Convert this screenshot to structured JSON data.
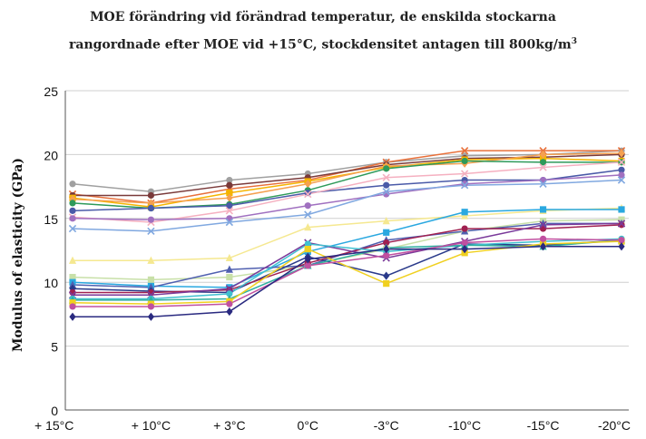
{
  "chart_data": {
    "type": "line",
    "title_line1": "MOE förändring vid förändrad temperatur, de enskilda stockarna",
    "title_line2_prefix": "rangordnade efter MOE vid +15°C, stockdensitet antagen till 800kg/m",
    "title_superscript": "3",
    "ylabel": "Modulus of elasticity (GPa)",
    "xlabel": "",
    "categories": [
      "+ 15°C",
      "+ 10°C",
      "+ 3°C",
      "0°C",
      "-3°C",
      "-10°C",
      "-15°C",
      "-20°C"
    ],
    "yticks": [
      "0",
      "5",
      "10",
      "15",
      "20",
      "25"
    ],
    "ylim": [
      0,
      25
    ],
    "grid": true,
    "legend": "none",
    "series": [
      {
        "color": "#a0a0a0",
        "marker": "circle",
        "values": [
          17.7,
          17.1,
          18.0,
          18.5,
          19.4,
          19.9,
          20.0,
          20.3
        ]
      },
      {
        "color": "#e8703a",
        "marker": "x",
        "values": [
          16.9,
          16.2,
          17.3,
          18.0,
          19.4,
          20.3,
          20.3,
          20.3
        ]
      },
      {
        "color": "#7a3a3a",
        "marker": "circle",
        "values": [
          16.8,
          16.8,
          17.6,
          18.2,
          19.2,
          19.7,
          19.8,
          20.0
        ]
      },
      {
        "color": "#f5b400",
        "marker": "square",
        "values": [
          16.6,
          15.9,
          17.0,
          17.9,
          19.0,
          19.6,
          19.7,
          19.5
        ]
      },
      {
        "color": "#f5a050",
        "marker": "diamond",
        "values": [
          16.5,
          16.2,
          16.6,
          17.7,
          19.1,
          19.3,
          20.0,
          20.1
        ]
      },
      {
        "color": "#2e9a5a",
        "marker": "circle",
        "values": [
          16.2,
          15.8,
          16.1,
          17.2,
          18.9,
          19.5,
          19.4,
          19.4
        ]
      },
      {
        "color": "#4a5aa8",
        "marker": "circle",
        "values": [
          15.6,
          15.8,
          16.0,
          17.0,
          17.6,
          18.0,
          18.0,
          18.8
        ]
      },
      {
        "color": "#f5b0c0",
        "marker": "x",
        "values": [
          15.1,
          14.7,
          15.6,
          16.9,
          18.2,
          18.5,
          19.0,
          19.4
        ]
      },
      {
        "color": "#a070c0",
        "marker": "circle",
        "values": [
          15.0,
          14.9,
          15.0,
          16.0,
          16.9,
          17.7,
          18.0,
          18.4
        ]
      },
      {
        "color": "#80a8e0",
        "marker": "x",
        "values": [
          14.2,
          14.0,
          14.7,
          15.3,
          17.1,
          17.6,
          17.7,
          18.0
        ]
      },
      {
        "color": "#f5e890",
        "marker": "triangle",
        "values": [
          11.7,
          11.7,
          11.9,
          14.3,
          14.8,
          15.2,
          15.6,
          15.8
        ]
      },
      {
        "color": "#c8e0a8",
        "marker": "square",
        "values": [
          10.4,
          10.2,
          10.4,
          11.3,
          12.6,
          14.0,
          14.8,
          14.9
        ]
      },
      {
        "color": "#2aa8e0",
        "marker": "square",
        "values": [
          10.0,
          9.7,
          9.6,
          12.4,
          13.9,
          15.5,
          15.7,
          15.7
        ]
      },
      {
        "color": "#5060b0",
        "marker": "triangle",
        "values": [
          9.8,
          9.6,
          11.0,
          11.3,
          13.3,
          14.0,
          14.6,
          14.6
        ]
      },
      {
        "color": "#2a3a8a",
        "marker": "diamond",
        "values": [
          9.5,
          9.3,
          9.2,
          12.0,
          10.5,
          13.0,
          12.9,
          13.3
        ]
      },
      {
        "color": "#a02050",
        "marker": "circle",
        "values": [
          9.2,
          9.2,
          9.4,
          11.5,
          13.1,
          14.2,
          14.2,
          14.5
        ]
      },
      {
        "color": "#7a3a9a",
        "marker": "x",
        "values": [
          9.0,
          9.0,
          9.5,
          13.1,
          11.9,
          13.2,
          14.5,
          14.6
        ]
      },
      {
        "color": "#40c0d0",
        "marker": "circle",
        "values": [
          8.7,
          8.7,
          9.1,
          13.0,
          12.4,
          12.9,
          13.2,
          13.4
        ]
      },
      {
        "color": "#30b0a0",
        "marker": "triangle",
        "values": [
          8.6,
          8.6,
          8.7,
          11.3,
          12.7,
          12.9,
          12.8,
          13.3
        ]
      },
      {
        "color": "#f0d020",
        "marker": "square",
        "values": [
          8.4,
          8.3,
          8.5,
          12.6,
          9.9,
          12.3,
          13.0,
          13.2
        ]
      },
      {
        "color": "#c050a0",
        "marker": "circle",
        "values": [
          8.1,
          8.1,
          8.3,
          11.3,
          12.1,
          13.1,
          13.4,
          13.3
        ]
      },
      {
        "color": "#2a2a80",
        "marker": "diamond",
        "values": [
          7.3,
          7.3,
          7.7,
          11.8,
          12.6,
          12.6,
          12.8,
          12.8
        ]
      }
    ]
  }
}
